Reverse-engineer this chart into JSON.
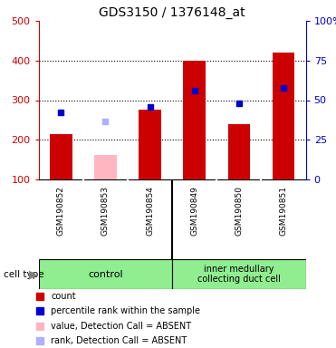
{
  "title": "GDS3150 / 1376148_at",
  "samples": [
    "GSM190852",
    "GSM190853",
    "GSM190854",
    "GSM190849",
    "GSM190850",
    "GSM190851"
  ],
  "bar_values": [
    215,
    null,
    275,
    400,
    240,
    420
  ],
  "bar_color": "#cc0000",
  "absent_bar_values": [
    null,
    162,
    null,
    null,
    null,
    null
  ],
  "absent_bar_color": "#ffb6c1",
  "blue_dot_values": [
    270,
    null,
    283,
    325,
    293,
    330
  ],
  "absent_dot_values": [
    null,
    247,
    null,
    null,
    null,
    null
  ],
  "absent_dot_color": "#b0b0ff",
  "blue_dot_color": "#0000cc",
  "ylim_left": [
    100,
    500
  ],
  "ylim_right": [
    0,
    100
  ],
  "yticks_left": [
    100,
    200,
    300,
    400,
    500
  ],
  "ytick_labels_left": [
    "100",
    "200",
    "300",
    "400",
    "500"
  ],
  "yticks_right_vals": [
    0,
    25,
    50,
    75,
    100
  ],
  "ytick_labels_right": [
    "0",
    "25",
    "50",
    "75",
    "100%"
  ],
  "left_tick_color": "#cc0000",
  "right_tick_color": "#0000cc",
  "bar_width": 0.5,
  "baseline": 100,
  "grid_lines": [
    200,
    300,
    400
  ],
  "label_area_color": "#c8c8c8",
  "cell_type_bg": "#90ee90",
  "group_boundary": 2.5,
  "control_label": "control",
  "imcd_label": "inner medullary\ncollecting duct cell",
  "legend_items": [
    {
      "color": "#cc0000",
      "label": "count"
    },
    {
      "color": "#0000cc",
      "label": "percentile rank within the sample"
    },
    {
      "color": "#ffb6c1",
      "label": "value, Detection Call = ABSENT"
    },
    {
      "color": "#b0b0ff",
      "label": "rank, Detection Call = ABSENT"
    }
  ]
}
